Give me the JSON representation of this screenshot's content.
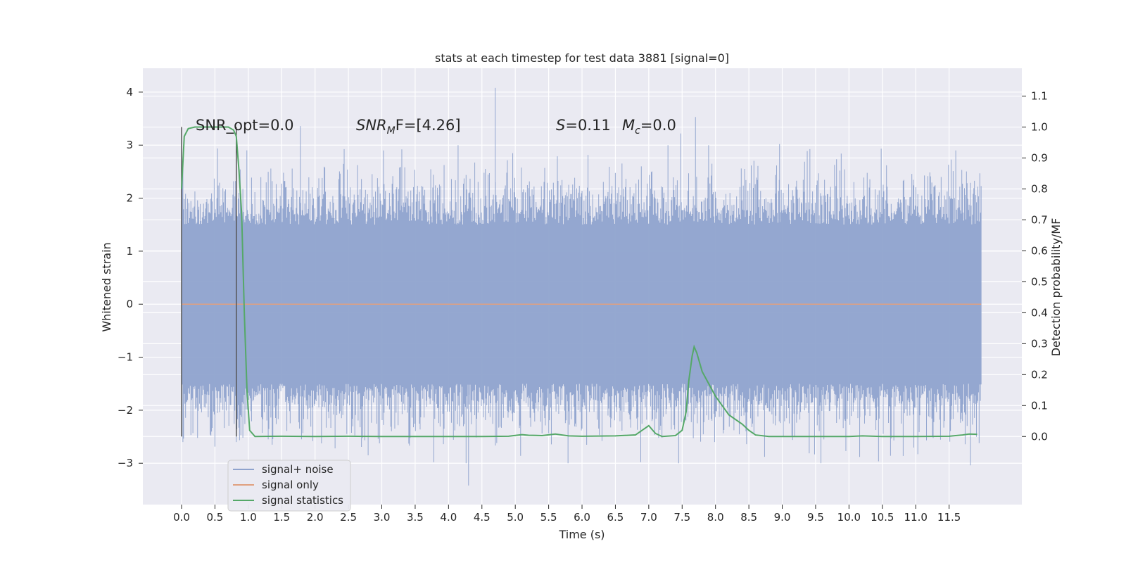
{
  "chart_data": {
    "type": "line",
    "title": "stats at each timestep for test data 3881 [signal=0]",
    "xlabel": "Time (s)",
    "ylabel_left": "Whitened strain",
    "ylabel_right": "Detection probability/MF",
    "xlim": [
      -0.58,
      12.59
    ],
    "ylim_left": [
      -3.78,
      4.45
    ],
    "ylim_right": [
      -0.22,
      1.19
    ],
    "x_ticks": [
      0.0,
      0.5,
      1.0,
      1.5,
      2.0,
      2.5,
      3.0,
      3.5,
      4.0,
      4.5,
      5.0,
      5.5,
      6.0,
      6.5,
      7.0,
      7.5,
      8.0,
      8.5,
      9.0,
      9.5,
      10.0,
      10.5,
      11.0,
      11.5
    ],
    "x_tick_labels": [
      "0.0",
      "0.5",
      "1.0",
      "1.5",
      "2.0",
      "2.5",
      "3.0",
      "3.5",
      "4.0",
      "4.5",
      "5.0",
      "5.5",
      "6.0",
      "6.5",
      "7.0",
      "7.5",
      "8.0",
      "8.5",
      "9.0",
      "9.5",
      "10.0",
      "10.5",
      "11.0",
      "11.5"
    ],
    "y_left_ticks": [
      -3,
      -2,
      -1,
      0,
      1,
      2,
      3,
      4
    ],
    "y_left_tick_labels": [
      "−3",
      "−2",
      "−1",
      "0",
      "1",
      "2",
      "3",
      "4"
    ],
    "y_right_ticks": [
      0.0,
      0.1,
      0.2,
      0.3,
      0.4,
      0.5,
      0.6,
      0.7,
      0.8,
      0.9,
      1.0,
      1.1
    ],
    "y_right_tick_labels": [
      "0.0",
      "0.1",
      "0.2",
      "0.3",
      "0.4",
      "0.5",
      "0.6",
      "0.7",
      "0.8",
      "0.9",
      "1.0",
      "1.1"
    ],
    "grid": true,
    "legend": {
      "placement": "lower-left",
      "entries": [
        {
          "label": "signal+ noise",
          "color": "#8fa3cd"
        },
        {
          "label": "signal only",
          "color": "#e0a07f"
        },
        {
          "label": "signal statistics",
          "color": "#55a868"
        }
      ]
    },
    "annotations": {
      "snr_opt": "SNR_opt=0.0",
      "snr_mf_main": "SNR",
      "snr_mf_sub": "M",
      "snr_mf_rest": "F=[4.26]",
      "s_main": "S",
      "s_rest": "=0.11",
      "mc_main": "M",
      "mc_sub": "c",
      "mc_rest": "=0.0"
    },
    "vertical_markers": [
      {
        "x": 0.0,
        "ymin_right": 0.0,
        "ymax_right": 1.0
      },
      {
        "x": 0.82,
        "ymin_right": 0.0,
        "ymax_right": 1.0
      }
    ],
    "series": [
      {
        "name": "signal+ noise",
        "axis": "left",
        "color": "#8fa3cd",
        "x_range": [
          0.0,
          11.98
        ],
        "envelope_description": "dense noise, roughly within -2.2 to 2.2 with spikes",
        "spikes": [
          {
            "x": 4.7,
            "y": 4.08
          },
          {
            "x": 7.7,
            "y": 3.53
          },
          {
            "x": 1.78,
            "y": 3.36
          },
          {
            "x": 7.48,
            "y": 3.22
          },
          {
            "x": 4.3,
            "y": -3.42
          },
          {
            "x": 11.82,
            "y": -3.04
          },
          {
            "x": 3.78,
            "y": -2.98
          },
          {
            "x": 6.88,
            "y": -2.98
          },
          {
            "x": 9.58,
            "y": -3.0
          },
          {
            "x": 0.02,
            "y": -2.6
          },
          {
            "x": 0.82,
            "y": -2.6
          },
          {
            "x": 10.16,
            "y": -2.88
          },
          {
            "x": 5.08,
            "y": -2.86
          },
          {
            "x": 2.3,
            "y": -2.72
          },
          {
            "x": 8.96,
            "y": 3.02
          },
          {
            "x": 11.6,
            "y": 2.9
          },
          {
            "x": 3.3,
            "y": 2.92
          }
        ]
      },
      {
        "name": "signal only",
        "axis": "left",
        "color": "#e0a07f",
        "x": [
          0.0,
          11.98
        ],
        "y": [
          0.0,
          0.0
        ]
      },
      {
        "name": "signal statistics",
        "axis": "right",
        "color": "#55a868",
        "x": [
          0.0,
          0.04,
          0.1,
          0.2,
          0.3,
          0.5,
          0.7,
          0.78,
          0.82,
          0.86,
          0.9,
          0.94,
          0.98,
          1.02,
          1.1,
          1.5,
          2.0,
          2.5,
          3.0,
          3.5,
          4.0,
          4.5,
          4.9,
          5.1,
          5.2,
          5.4,
          5.6,
          5.7,
          5.8,
          6.0,
          6.5,
          6.8,
          6.9,
          7.0,
          7.1,
          7.2,
          7.4,
          7.5,
          7.56,
          7.6,
          7.65,
          7.68,
          7.72,
          7.8,
          7.9,
          8.0,
          8.1,
          8.2,
          8.4,
          8.5,
          8.6,
          8.8,
          9.0,
          9.5,
          10.0,
          10.2,
          10.5,
          11.0,
          11.5,
          11.7,
          11.8,
          11.92
        ],
        "y": [
          0.8,
          0.97,
          0.995,
          1.0,
          1.0,
          1.0,
          1.0,
          0.99,
          0.97,
          0.86,
          0.72,
          0.4,
          0.15,
          0.02,
          0.0,
          0.001,
          0.0,
          0.001,
          0.0,
          0.0,
          0.0,
          0.0,
          0.001,
          0.006,
          0.004,
          0.003,
          0.008,
          0.005,
          0.002,
          0.001,
          0.002,
          0.005,
          0.02,
          0.035,
          0.01,
          0.0,
          0.003,
          0.02,
          0.08,
          0.18,
          0.26,
          0.29,
          0.27,
          0.21,
          0.17,
          0.13,
          0.1,
          0.07,
          0.04,
          0.02,
          0.005,
          0.0,
          0.0,
          0.0,
          0.0,
          0.002,
          0.0,
          0.0,
          0.001,
          0.005,
          0.008,
          0.007
        ]
      }
    ]
  }
}
